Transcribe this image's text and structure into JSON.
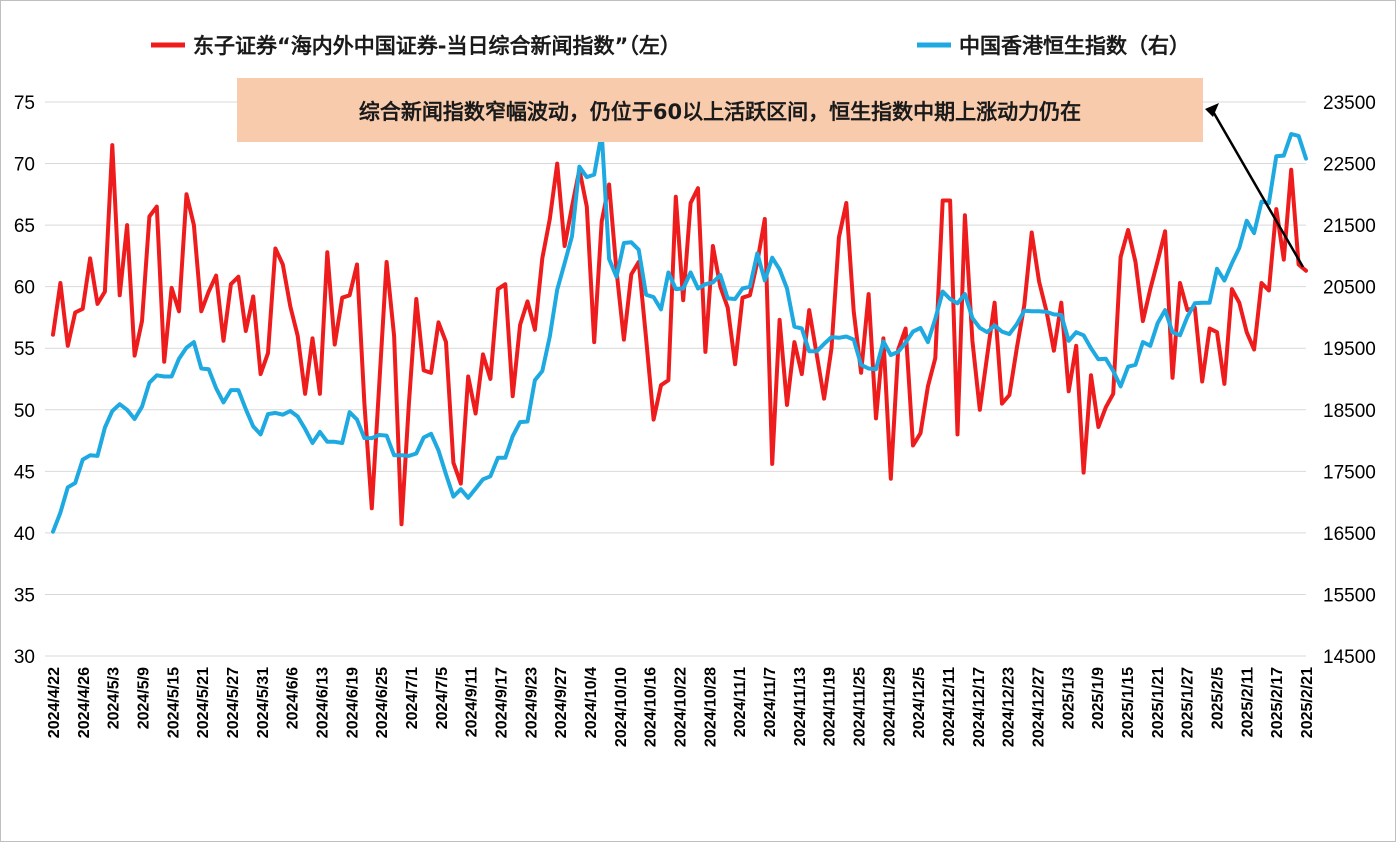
{
  "chart_data": {
    "type": "line",
    "title": "",
    "xlabel": "",
    "ylabel": "",
    "y2label": "",
    "grid": "horizontal",
    "legend_position": "top",
    "left_axis": {
      "range": [
        30,
        75
      ],
      "ticks": [
        30,
        35,
        40,
        45,
        50,
        55,
        60,
        65,
        70,
        75
      ]
    },
    "right_axis": {
      "range": [
        14500,
        23500
      ],
      "ticks": [
        14500,
        15500,
        16500,
        17500,
        18500,
        19500,
        20500,
        21500,
        22500,
        23500
      ]
    },
    "x_tick_labels": [
      "2024/4/22",
      "2024/4/26",
      "2024/5/3",
      "2024/5/9",
      "2024/5/15",
      "2024/5/21",
      "2024/5/27",
      "2024/5/31",
      "2024/6/6",
      "2024/6/13",
      "2024/6/19",
      "2024/6/25",
      "2024/7/1",
      "2024/7/5",
      "2024/9/11",
      "2024/9/17",
      "2024/9/23",
      "2024/9/27",
      "2024/10/4",
      "2024/10/10",
      "2024/10/16",
      "2024/10/22",
      "2024/10/28",
      "2024/11/1",
      "2024/11/7",
      "2024/11/13",
      "2024/11/19",
      "2024/11/25",
      "2024/11/29",
      "2024/12/5",
      "2024/12/11",
      "2024/12/17",
      "2024/12/23",
      "2024/12/27",
      "2025/1/3",
      "2025/1/9",
      "2025/1/15",
      "2025/1/21",
      "2025/1/27",
      "2025/2/5",
      "2025/2/11",
      "2025/2/17",
      "2025/2/21"
    ],
    "annotation": "综合新闻指数窄幅波动，仍位于60以上活跃区间，恒生指数中期上涨动力仍在",
    "series": [
      {
        "name": "东子证券“海内外中国证券-当日综合新闻指数”（左）",
        "axis": "left",
        "color": "#ee1c1c",
        "values": [
          56.1,
          60.3,
          55.2,
          57.9,
          58.2,
          62.3,
          58.6,
          59.6,
          71.5,
          59.3,
          65.0,
          54.4,
          57.2,
          65.7,
          66.5,
          53.9,
          59.9,
          58.0,
          67.5,
          65.0,
          58.0,
          59.6,
          60.9,
          55.6,
          60.2,
          60.8,
          56.4,
          59.2,
          52.9,
          54.6,
          63.1,
          61.8,
          58.4,
          56.0,
          51.3,
          55.8,
          51.3,
          62.8,
          55.3,
          59.1,
          59.3,
          61.8,
          50.5,
          42.0,
          52.0,
          62.0,
          56.0,
          40.7,
          50.5,
          59.0,
          53.2,
          53.0,
          57.1,
          55.5,
          45.7,
          44.0,
          52.7,
          49.7,
          54.5,
          52.5,
          59.8,
          60.2,
          51.1,
          56.9,
          58.8,
          56.5,
          62.3,
          65.5,
          70.0,
          63.3,
          66.5,
          69.5,
          66.5,
          55.5,
          65.3,
          68.3,
          61.3,
          55.7,
          61.0,
          62.0,
          55.8,
          49.2,
          52.0,
          52.4,
          67.3,
          58.9,
          66.8,
          68.0,
          54.7,
          63.3,
          60.0,
          58.3,
          53.7,
          59.1,
          59.3,
          62.0,
          65.5,
          45.6,
          57.3,
          50.4,
          55.5,
          52.9,
          58.1,
          54.5,
          50.9,
          55.0,
          64.0,
          66.8,
          58.0,
          53.0,
          59.4,
          49.3,
          55.8,
          44.4,
          54.9,
          56.6,
          47.1,
          48.1,
          51.9,
          54.2,
          67.0,
          67.0,
          48.0,
          65.8,
          55.6,
          50.0,
          54.4,
          58.7,
          50.5,
          51.2,
          55.0,
          58.5,
          64.4,
          60.4,
          58.0,
          54.8,
          58.7,
          51.5,
          55.2,
          44.9,
          52.8,
          48.6,
          50.2,
          51.3,
          62.4,
          64.6,
          62.0,
          57.2,
          59.8,
          62.1,
          64.5,
          52.6,
          60.3,
          58.1,
          58.3,
          52.3,
          56.6,
          56.3,
          52.1,
          59.8,
          58.7,
          56.3,
          54.9,
          60.3,
          59.7,
          66.3,
          62.2,
          69.5,
          61.8,
          61.3
        ]
      },
      {
        "name": "中国香港恒生指数（右）",
        "axis": "right",
        "color": "#1ea9e1",
        "values": [
          16520,
          16830,
          17240,
          17310,
          17690,
          17760,
          17750,
          18210,
          18480,
          18590,
          18500,
          18350,
          18550,
          18940,
          19060,
          19040,
          19040,
          19330,
          19510,
          19600,
          19170,
          19160,
          18850,
          18620,
          18820,
          18820,
          18510,
          18230,
          18100,
          18430,
          18450,
          18420,
          18480,
          18390,
          18190,
          17960,
          18140,
          17980,
          17980,
          17960,
          18460,
          18340,
          18040,
          18040,
          18090,
          18080,
          17760,
          17760,
          17750,
          17790,
          18050,
          18110,
          17840,
          17450,
          17090,
          17210,
          17070,
          17220,
          17370,
          17420,
          17720,
          17720,
          18070,
          18300,
          18310,
          18980,
          19130,
          19690,
          20450,
          20880,
          21320,
          22450,
          22280,
          22320,
          23000,
          20950,
          20660,
          21210,
          21220,
          21100,
          20370,
          20330,
          20130,
          20730,
          20460,
          20470,
          20730,
          20470,
          20540,
          20570,
          20690,
          20310,
          20300,
          20470,
          20500,
          21040,
          20600,
          20970,
          20780,
          20470,
          19850,
          19820,
          19450,
          19450,
          19570,
          19680,
          19670,
          19690,
          19640,
          19230,
          19170,
          19160,
          19610,
          19390,
          19440,
          19590,
          19770,
          19830,
          19600,
          19980,
          20420,
          20300,
          20230,
          20380,
          19990,
          19830,
          19760,
          19870,
          19770,
          19730,
          19890,
          20110,
          20100,
          20100,
          20090,
          20050,
          20040,
          19620,
          19760,
          19710,
          19500,
          19320,
          19330,
          19130,
          18880,
          19200,
          19230,
          19600,
          19540,
          19910,
          20120,
          19760,
          19710,
          20010,
          20230,
          20240,
          20240,
          20790,
          20600,
          20880,
          21130,
          21570,
          21370,
          21880,
          21860,
          22620,
          22630,
          22980,
          22950,
          22580
        ]
      }
    ]
  }
}
